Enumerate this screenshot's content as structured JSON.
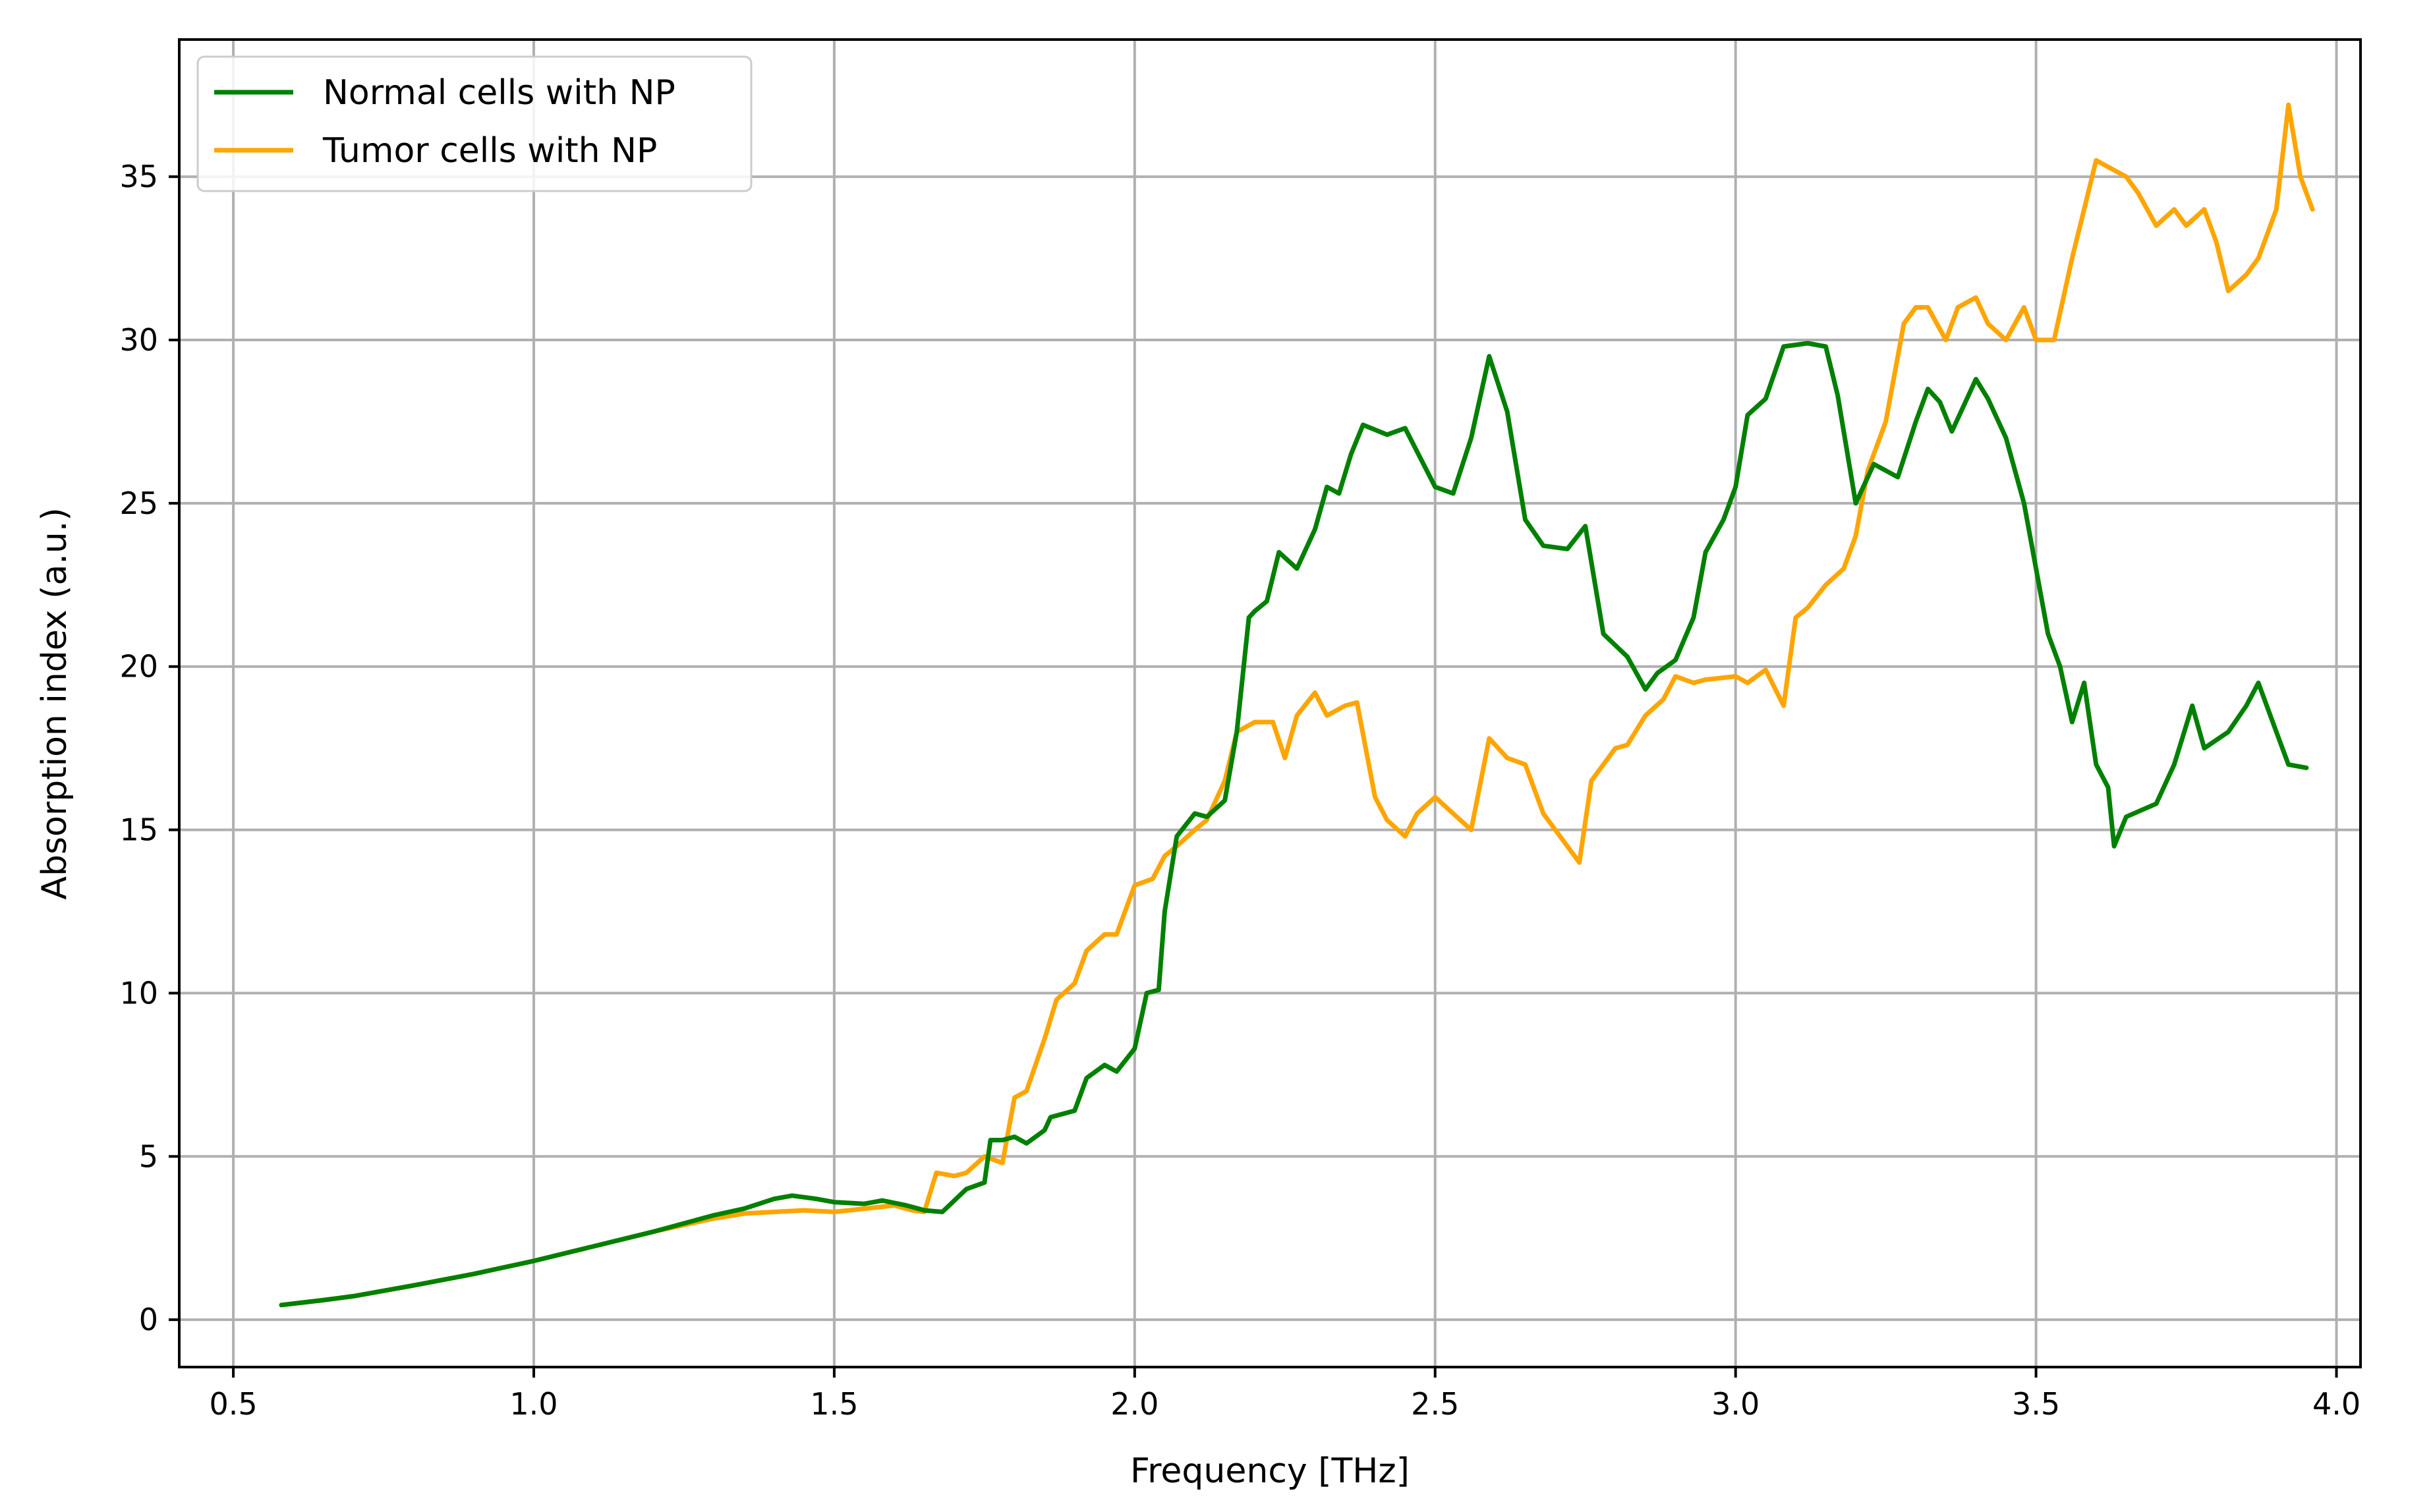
{
  "chart_data": {
    "type": "line",
    "title": "",
    "xlabel": "Frequency [THz]",
    "ylabel": "Absorption index (a.u.)",
    "xlim": [
      0.41,
      4.04
    ],
    "ylim": [
      -1.45,
      39.2
    ],
    "xticks": [
      0.5,
      1.0,
      1.5,
      2.0,
      2.5,
      3.0,
      3.5,
      4.0
    ],
    "xtick_labels": [
      "0.5",
      "1.0",
      "1.5",
      "2.0",
      "2.5",
      "3.0",
      "3.5",
      "4.0"
    ],
    "yticks": [
      0,
      5,
      10,
      15,
      20,
      25,
      30,
      35
    ],
    "ytick_labels": [
      "0",
      "5",
      "10",
      "15",
      "20",
      "25",
      "30",
      "35"
    ],
    "grid": true,
    "legend_position": "top-left",
    "series": [
      {
        "name": "Normal cells with NP",
        "color": "#008000",
        "x": [
          0.58,
          0.65,
          0.7,
          0.8,
          0.9,
          1.0,
          1.1,
          1.2,
          1.25,
          1.3,
          1.35,
          1.4,
          1.43,
          1.47,
          1.5,
          1.55,
          1.58,
          1.62,
          1.65,
          1.68,
          1.72,
          1.75,
          1.76,
          1.78,
          1.8,
          1.82,
          1.85,
          1.86,
          1.9,
          1.92,
          1.95,
          1.97,
          2.0,
          2.02,
          2.04,
          2.05,
          2.07,
          2.1,
          2.12,
          2.15,
          2.17,
          2.19,
          2.2,
          2.22,
          2.24,
          2.27,
          2.3,
          2.32,
          2.34,
          2.36,
          2.38,
          2.42,
          2.45,
          2.5,
          2.53,
          2.56,
          2.59,
          2.62,
          2.65,
          2.68,
          2.72,
          2.75,
          2.78,
          2.82,
          2.85,
          2.87,
          2.9,
          2.93,
          2.95,
          2.98,
          3.0,
          3.02,
          3.05,
          3.08,
          3.12,
          3.15,
          3.17,
          3.2,
          3.23,
          3.25,
          3.27,
          3.3,
          3.32,
          3.34,
          3.36,
          3.38,
          3.4,
          3.42,
          3.45,
          3.48,
          3.5,
          3.52,
          3.54,
          3.56,
          3.58,
          3.6,
          3.62,
          3.63,
          3.65,
          3.7,
          3.73,
          3.76,
          3.78,
          3.82,
          3.85,
          3.87,
          3.9,
          3.92,
          3.95
        ],
        "y": [
          0.45,
          0.6,
          0.72,
          1.05,
          1.4,
          1.8,
          2.25,
          2.7,
          2.95,
          3.2,
          3.4,
          3.7,
          3.8,
          3.7,
          3.6,
          3.55,
          3.65,
          3.5,
          3.35,
          3.3,
          4.0,
          4.2,
          5.5,
          5.5,
          5.6,
          5.4,
          5.8,
          6.2,
          6.4,
          7.4,
          7.8,
          7.6,
          8.3,
          10.0,
          10.1,
          12.5,
          14.8,
          15.5,
          15.4,
          15.9,
          18.0,
          21.5,
          21.7,
          22.0,
          23.5,
          23.0,
          24.2,
          25.5,
          25.3,
          26.5,
          27.4,
          27.1,
          27.3,
          25.5,
          25.3,
          27.0,
          29.5,
          27.8,
          24.5,
          23.7,
          23.6,
          24.3,
          21.0,
          20.3,
          19.3,
          19.8,
          20.2,
          21.5,
          23.5,
          24.5,
          25.5,
          27.7,
          28.2,
          29.8,
          29.9,
          29.8,
          28.3,
          25.0,
          26.2,
          26.0,
          25.8,
          27.5,
          28.5,
          28.1,
          27.2,
          28.0,
          28.8,
          28.2,
          27.0,
          25.0,
          23.0,
          21.0,
          20.0,
          18.3,
          19.5,
          17.0,
          16.3,
          14.5,
          15.4,
          15.8,
          17.0,
          18.8,
          17.5,
          18.0,
          18.8,
          19.5,
          18.0,
          17.0,
          16.9
        ]
      },
      {
        "name": "Tumor cells with NP",
        "color": "#FFA500",
        "x": [
          0.58,
          0.65,
          0.7,
          0.8,
          0.9,
          1.0,
          1.1,
          1.2,
          1.3,
          1.35,
          1.4,
          1.45,
          1.5,
          1.55,
          1.6,
          1.63,
          1.65,
          1.67,
          1.7,
          1.72,
          1.75,
          1.78,
          1.8,
          1.82,
          1.85,
          1.87,
          1.9,
          1.92,
          1.95,
          1.97,
          2.0,
          2.03,
          2.05,
          2.07,
          2.1,
          2.12,
          2.15,
          2.17,
          2.2,
          2.23,
          2.25,
          2.27,
          2.3,
          2.32,
          2.35,
          2.37,
          2.4,
          2.42,
          2.45,
          2.47,
          2.5,
          2.53,
          2.56,
          2.59,
          2.62,
          2.65,
          2.68,
          2.72,
          2.74,
          2.76,
          2.8,
          2.82,
          2.85,
          2.88,
          2.9,
          2.93,
          2.95,
          3.0,
          3.02,
          3.05,
          3.08,
          3.1,
          3.12,
          3.15,
          3.18,
          3.2,
          3.22,
          3.25,
          3.28,
          3.3,
          3.32,
          3.35,
          3.37,
          3.4,
          3.42,
          3.45,
          3.48,
          3.5,
          3.53,
          3.56,
          3.58,
          3.6,
          3.63,
          3.65,
          3.67,
          3.7,
          3.73,
          3.75,
          3.78,
          3.8,
          3.82,
          3.85,
          3.87,
          3.9,
          3.92,
          3.94,
          3.96
        ],
        "y": [
          0.45,
          0.6,
          0.72,
          1.05,
          1.4,
          1.8,
          2.25,
          2.7,
          3.1,
          3.25,
          3.3,
          3.35,
          3.3,
          3.4,
          3.5,
          3.35,
          3.3,
          4.5,
          4.4,
          4.5,
          5.0,
          4.8,
          6.8,
          7.0,
          8.6,
          9.8,
          10.3,
          11.3,
          11.8,
          11.8,
          13.3,
          13.5,
          14.2,
          14.5,
          15.0,
          15.3,
          16.5,
          18.0,
          18.3,
          18.3,
          17.2,
          18.5,
          19.2,
          18.5,
          18.8,
          18.9,
          16.0,
          15.3,
          14.8,
          15.5,
          16.0,
          15.5,
          15.0,
          17.8,
          17.2,
          17.0,
          15.5,
          14.5,
          14.0,
          16.5,
          17.5,
          17.6,
          18.5,
          19.0,
          19.7,
          19.5,
          19.6,
          19.7,
          19.5,
          19.9,
          18.8,
          21.5,
          21.8,
          22.5,
          23.0,
          24.0,
          26.0,
          27.5,
          30.5,
          31.0,
          31.0,
          30.0,
          31.0,
          31.3,
          30.5,
          30.0,
          31.0,
          30.0,
          30.0,
          32.5,
          34.0,
          35.5,
          35.2,
          35.0,
          34.5,
          33.5,
          34.0,
          33.5,
          34.0,
          33.0,
          31.5,
          32.0,
          32.5,
          34.0,
          37.2,
          35.0,
          34.0
        ]
      }
    ]
  }
}
